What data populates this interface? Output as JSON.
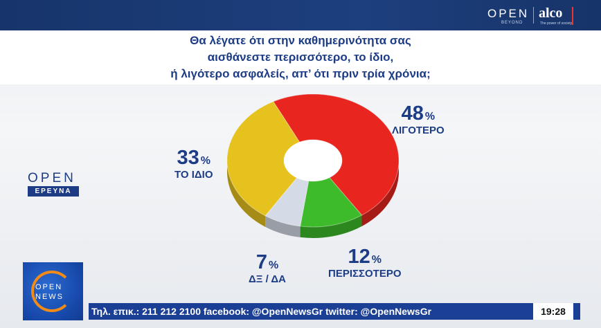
{
  "header": {
    "brand_open": "OPEN",
    "brand_beyond": "BEYOND",
    "brand_alco": "alco",
    "brand_alco_sub": "The power of society"
  },
  "question": {
    "line1": "Θα λέγατε ότι στην καθημερινότητα σας",
    "line2": "αισθάνεστε περισσότερο, το ίδιο,",
    "line3": "ή λιγότερο ασφαλείς, απ’  ότι πριν τρία χρόνια;"
  },
  "side_logo": {
    "open": "OPEN",
    "research": "ΕΡΕΥΝΑ"
  },
  "news_logo": {
    "open": "OPEN",
    "news": "NEWS"
  },
  "ticker": {
    "text": "Τηλ. επικ.: 211 212 2100 facebook: @OpenNewsGr twitter: @OpenNewsGr",
    "time": "19:28"
  },
  "chart_data": {
    "type": "pie",
    "donut": true,
    "unit": "%",
    "slices": [
      {
        "label": "ΛΙΓΟΤΕΡΟ",
        "value": 48,
        "color": "#e8261f"
      },
      {
        "label": "ΠΕΡΙΣΣΟΤΕΡΟ",
        "value": 12,
        "color": "#3dbb2a"
      },
      {
        "label": "ΔΞ / ΔΑ",
        "value": 7,
        "color": "#d4dbe6"
      },
      {
        "label": "ΤΟ ΙΔΙΟ",
        "value": 33,
        "color": "#e6c21f"
      }
    ],
    "labels": {
      "less": {
        "value": "48",
        "sym": "%",
        "cat": "ΛΙΓΟΤΕΡΟ"
      },
      "more": {
        "value": "12",
        "sym": "%",
        "cat": "ΠΕΡΙΣΣΟΤΕΡΟ"
      },
      "dk": {
        "value": "7",
        "sym": "%",
        "cat": "ΔΞ / ΔΑ"
      },
      "same": {
        "value": "33",
        "sym": "%",
        "cat": "ΤΟ ΙΔΙΟ"
      }
    }
  }
}
